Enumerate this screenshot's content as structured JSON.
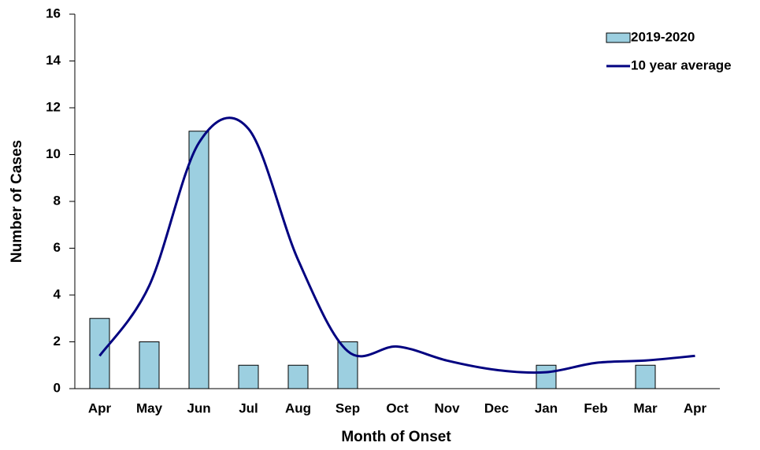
{
  "chart_data": {
    "type": "bar-line",
    "x_label": "Month of Onset",
    "y_label": "Number of Cases",
    "categories": [
      "Apr",
      "May",
      "Jun",
      "Jul",
      "Aug",
      "Sep",
      "Oct",
      "Nov",
      "Dec",
      "Jan",
      "Feb",
      "Mar",
      "Apr"
    ],
    "series": [
      {
        "name": "2019-2020",
        "type": "bar",
        "color": "#9ccfe0",
        "values": [
          3,
          2,
          11,
          1,
          1,
          2,
          0,
          0,
          0,
          1,
          0,
          1,
          null
        ]
      },
      {
        "name": "10 year average",
        "type": "line",
        "color": "#000080",
        "values": [
          1.4,
          4.4,
          10.5,
          11.1,
          5.5,
          1.6,
          1.8,
          1.2,
          0.8,
          0.7,
          1.1,
          1.2,
          1.4
        ]
      }
    ],
    "ylim": [
      0,
      16
    ],
    "yticks": [
      0,
      2,
      4,
      6,
      8,
      10,
      12,
      14,
      16
    ],
    "legend": "upper right"
  }
}
